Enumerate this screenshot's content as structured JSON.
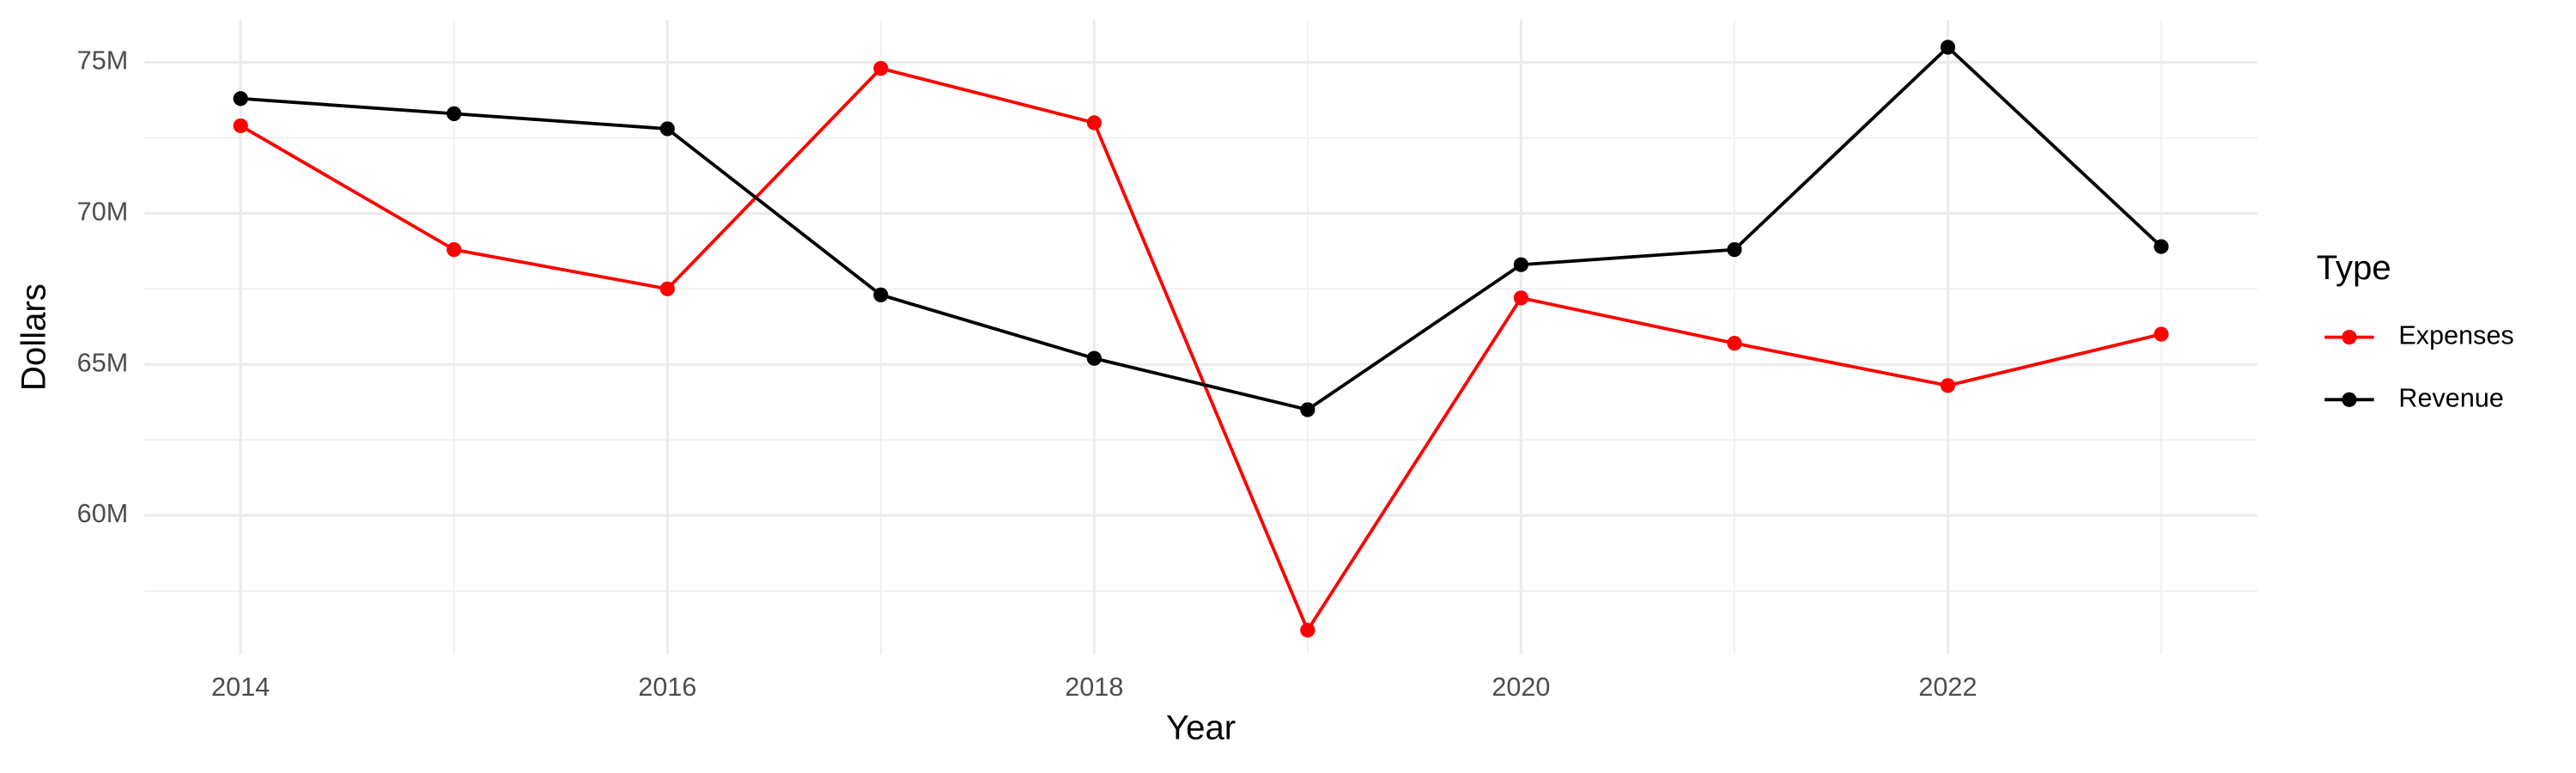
{
  "chart_data": {
    "type": "line",
    "x_label": "Year",
    "y_label": "Dollars",
    "legend_title": "Type",
    "legend_position": "right",
    "grid": true,
    "minor_grid": true,
    "x": [
      2014,
      2015,
      2016,
      2017,
      2018,
      2019,
      2020,
      2021,
      2022,
      2023
    ],
    "series": [
      {
        "name": "Expenses",
        "color": "#ff0000",
        "values": [
          72900000,
          68800000,
          67500000,
          74800000,
          73000000,
          56200000,
          67200000,
          65700000,
          64300000,
          66000000
        ]
      },
      {
        "name": "Revenue",
        "color": "#000000",
        "values": [
          73800000,
          73300000,
          72800000,
          67300000,
          65200000,
          63500000,
          68300000,
          68800000,
          75500000,
          68900000
        ]
      }
    ],
    "xlim": [
      2013.55,
      2023.45
    ],
    "xticks": [
      2014,
      2016,
      2018,
      2020,
      2022
    ],
    "ylim": [
      55400000,
      76400000
    ],
    "yticks": [
      {
        "value": 60000000,
        "label": "60M"
      },
      {
        "value": 65000000,
        "label": "65M"
      },
      {
        "value": 70000000,
        "label": "70M"
      },
      {
        "value": 75000000,
        "label": "75M"
      }
    ]
  }
}
